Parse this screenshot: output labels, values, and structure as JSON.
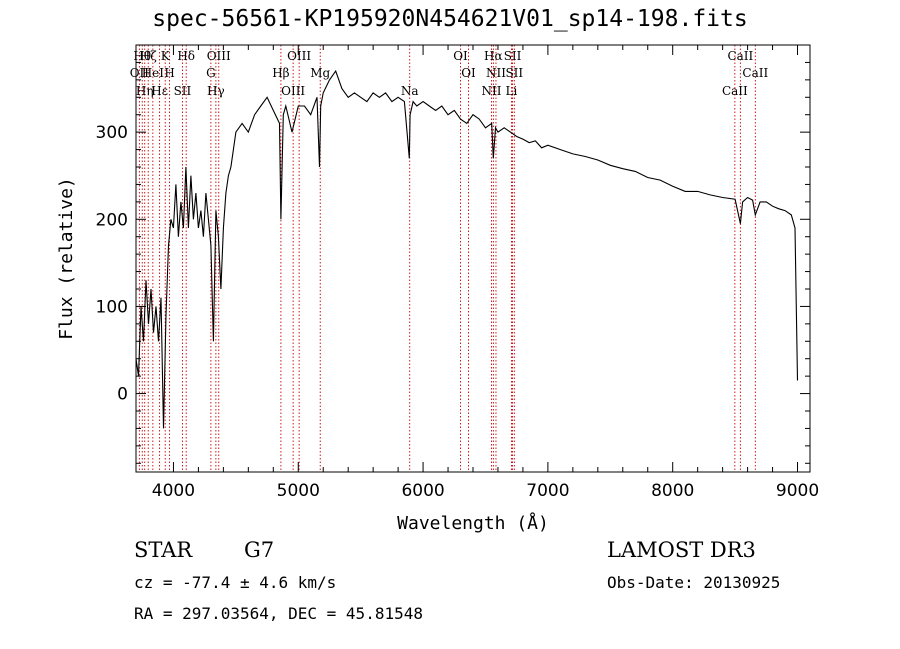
{
  "header": {
    "title": "spec-56561-KP195920N454621V01_sp14-198.fits"
  },
  "info": {
    "object_type": "STAR",
    "object_class": "G7",
    "survey": "LAMOST DR3",
    "redshift_text": "cz = -77.4 ± 4.6 km/s",
    "obs_date_text": "Obs-Date: 20130925",
    "coords_text": "RA = 297.03564, DEC =  45.81548"
  },
  "colors": {
    "spectrum": "#000000",
    "line_markers": "#cc0000",
    "axes": "#000000"
  },
  "chart_data": {
    "type": "line",
    "xlabel": "Wavelength (Å)",
    "ylabel": "Flux (relative)",
    "xlim": [
      3700,
      9100
    ],
    "ylim": [
      -90,
      400
    ],
    "xticks": [
      4000,
      5000,
      6000,
      7000,
      8000,
      9000
    ],
    "yticks": [
      0,
      100,
      200,
      300
    ],
    "grid": false,
    "series": [
      {
        "x": [
          3700,
          3720,
          3740,
          3760,
          3780,
          3800,
          3820,
          3840,
          3860,
          3880,
          3900,
          3920,
          3940,
          3960,
          3980,
          4000,
          4020,
          4040,
          4060,
          4080,
          4100,
          4120,
          4140,
          4160,
          4180,
          4200,
          4220,
          4240,
          4260,
          4280,
          4300,
          4320,
          4340,
          4360,
          4380,
          4400,
          4420,
          4440,
          4460,
          4480,
          4500,
          4550,
          4600,
          4650,
          4700,
          4750,
          4800,
          4850,
          4861,
          4880,
          4900,
          4950,
          5000,
          5050,
          5100,
          5150,
          5170,
          5180,
          5200,
          5250,
          5300,
          5350,
          5400,
          5450,
          5500,
          5550,
          5600,
          5650,
          5700,
          5750,
          5800,
          5850,
          5890,
          5896,
          5920,
          5950,
          6000,
          6050,
          6100,
          6150,
          6200,
          6250,
          6300,
          6350,
          6400,
          6450,
          6500,
          6550,
          6563,
          6580,
          6600,
          6650,
          6700,
          6750,
          6800,
          6850,
          6900,
          6950,
          7000,
          7100,
          7200,
          7300,
          7400,
          7500,
          7600,
          7700,
          7800,
          7900,
          8000,
          8100,
          8200,
          8300,
          8400,
          8500,
          8542,
          8560,
          8600,
          8640,
          8662,
          8700,
          8750,
          8800,
          8850,
          8900,
          8950,
          8980,
          9000
        ],
        "values": [
          40,
          20,
          100,
          60,
          130,
          80,
          120,
          70,
          100,
          60,
          110,
          -40,
          90,
          170,
          200,
          190,
          240,
          180,
          220,
          190,
          260,
          190,
          250,
          200,
          230,
          190,
          210,
          180,
          230,
          200,
          170,
          60,
          210,
          180,
          120,
          190,
          230,
          250,
          260,
          280,
          300,
          310,
          300,
          320,
          330,
          340,
          325,
          310,
          200,
          320,
          330,
          300,
          330,
          330,
          320,
          340,
          260,
          330,
          345,
          360,
          370,
          350,
          340,
          345,
          340,
          335,
          345,
          340,
          345,
          335,
          340,
          335,
          270,
          320,
          335,
          330,
          335,
          330,
          325,
          330,
          320,
          325,
          315,
          310,
          320,
          315,
          305,
          310,
          270,
          305,
          300,
          305,
          300,
          295,
          292,
          288,
          290,
          282,
          285,
          280,
          275,
          272,
          268,
          262,
          258,
          255,
          248,
          245,
          238,
          232,
          232,
          228,
          225,
          223,
          195,
          220,
          225,
          222,
          205,
          220,
          220,
          215,
          212,
          210,
          205,
          190,
          15
        ],
        "color": "#000000"
      }
    ],
    "line_markers": [
      {
        "wavelength": 3750,
        "label": "Hθ"
      },
      {
        "wavelength": 3727,
        "label": "OII"
      },
      {
        "wavelength": 3770,
        "label": "Hη"
      },
      {
        "wavelength": 3798,
        "label": "Hζ"
      },
      {
        "wavelength": 3835,
        "label": "HeI"
      },
      {
        "wavelength": 3889,
        "label": "Hε"
      },
      {
        "wavelength": 3934,
        "label": "K"
      },
      {
        "wavelength": 3969,
        "label": "H"
      },
      {
        "wavelength": 4072,
        "label": "SII"
      },
      {
        "wavelength": 4102,
        "label": "Hδ"
      },
      {
        "wavelength": 4300,
        "label": "G"
      },
      {
        "wavelength": 4340,
        "label": "Hγ"
      },
      {
        "wavelength": 4363,
        "label": "OIII"
      },
      {
        "wavelength": 4861,
        "label": "Hβ"
      },
      {
        "wavelength": 4959,
        "label": "OIII"
      },
      {
        "wavelength": 5007,
        "label": "OIII"
      },
      {
        "wavelength": 5176,
        "label": "Mg"
      },
      {
        "wavelength": 5893,
        "label": "Na"
      },
      {
        "wavelength": 6300,
        "label": "OI"
      },
      {
        "wavelength": 6364,
        "label": "OI"
      },
      {
        "wavelength": 6548,
        "label": "NII"
      },
      {
        "wavelength": 6563,
        "label": "Hα"
      },
      {
        "wavelength": 6584,
        "label": "NII"
      },
      {
        "wavelength": 6708,
        "label": "Li"
      },
      {
        "wavelength": 6717,
        "label": "SII"
      },
      {
        "wavelength": 6731,
        "label": "SII"
      },
      {
        "wavelength": 8498,
        "label": "CaII"
      },
      {
        "wavelength": 8542,
        "label": "CaII"
      },
      {
        "wavelength": 8662,
        "label": "CaII"
      }
    ]
  }
}
